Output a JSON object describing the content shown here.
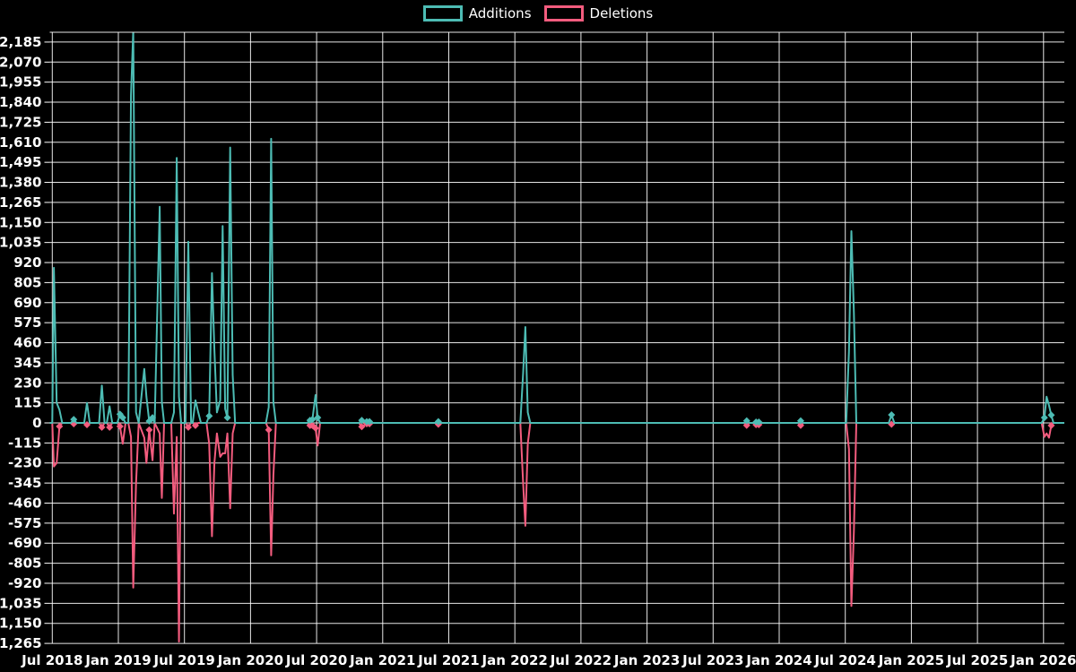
{
  "page": {
    "background": "#000000"
  },
  "legend": {
    "items": [
      {
        "label": "Additions",
        "color": "#4dbcb4"
      },
      {
        "label": "Deletions",
        "color": "#f35c7e"
      }
    ]
  },
  "chart_data": {
    "type": "line",
    "title": "",
    "xlabel": "",
    "ylabel": "",
    "x_unit": "months_since_jul_2018_weekly_points",
    "grid": true,
    "legend_position": "top-center",
    "background_color": "#000000",
    "gridline_color": "#ffffff",
    "x_ticks": [
      {
        "label": "Jul 2018",
        "month": 0
      },
      {
        "label": "Jan 2019",
        "month": 6
      },
      {
        "label": "Jul 2019",
        "month": 12
      },
      {
        "label": "Jan 2020",
        "month": 18
      },
      {
        "label": "Jul 2020",
        "month": 24
      },
      {
        "label": "Jan 2021",
        "month": 30
      },
      {
        "label": "Jul 2021",
        "month": 36
      },
      {
        "label": "Jan 2022",
        "month": 42
      },
      {
        "label": "Jul 2022",
        "month": 48
      },
      {
        "label": "Jan 2023",
        "month": 54
      },
      {
        "label": "Jul 2023",
        "month": 60
      },
      {
        "label": "Jan 2024",
        "month": 66
      },
      {
        "label": "Jul 2024",
        "month": 72
      },
      {
        "label": "Jan 2025",
        "month": 78
      },
      {
        "label": "Jul 2025",
        "month": 84
      },
      {
        "label": "Jan 2026",
        "month": 90
      }
    ],
    "y_ticks": [
      2185,
      2070,
      1955,
      1840,
      1725,
      1610,
      1495,
      1380,
      1265,
      1150,
      1035,
      920,
      805,
      690,
      575,
      460,
      345,
      230,
      115,
      0,
      -115,
      -230,
      -345,
      -460,
      -575,
      -690,
      -805,
      -920,
      -1035,
      -1150,
      -1265
    ],
    "y_step": 115,
    "y_shown_range": [
      -1265,
      2185
    ],
    "x": [
      0.0,
      0.15,
      0.4,
      0.65,
      0.9,
      1.95,
      3.15,
      4.5,
      5.2,
      6.15,
      6.4,
      7.15,
      7.35,
      7.6,
      7.85,
      8.35,
      8.55,
      8.8,
      9.1,
      9.3,
      9.75,
      9.95,
      10.15,
      11.05,
      11.3,
      11.5,
      11.7,
      12.35,
      13.0,
      13.25,
      14.25,
      14.5,
      14.72,
      14.95,
      15.25,
      15.47,
      15.7,
      15.9,
      16.15,
      16.38,
      16.6,
      19.65,
      19.87,
      20.08,
      20.3,
      23.4,
      23.62,
      23.9,
      24.1,
      24.32,
      28.1,
      28.55,
      28.8,
      35.05,
      42.75,
      42.95,
      43.17,
      43.4,
      63.05,
      63.9,
      64.15,
      67.95,
      72.33,
      72.55,
      72.78,
      73.0,
      76.2,
      90.08,
      90.28,
      90.5,
      90.7,
      90.9,
      92.2
    ],
    "series": [
      {
        "name": "Additions",
        "color": "#4dbcb4",
        "values": [
          0,
          890,
          115,
          75,
          0,
          20,
          115,
          215,
          95,
          50,
          30,
          1880,
          2250,
          60,
          0,
          310,
          150,
          10,
          30,
          0,
          1240,
          120,
          0,
          60,
          1520,
          150,
          0,
          1040,
          130,
          60,
          40,
          860,
          420,
          60,
          130,
          1130,
          80,
          30,
          1580,
          275,
          0,
          90,
          1630,
          120,
          0,
          15,
          20,
          160,
          30,
          0,
          15,
          8,
          8,
          8,
          285,
          550,
          60,
          0,
          12,
          5,
          5,
          12,
          410,
          1100,
          630,
          0,
          46,
          30,
          150,
          100,
          45,
          0,
          0
        ]
      },
      {
        "name": "Deletions",
        "color": "#f35c7e",
        "values": [
          0,
          -250,
          -230,
          -20,
          0,
          -5,
          -10,
          -25,
          -25,
          -20,
          -120,
          -80,
          -945,
          -350,
          0,
          -85,
          -230,
          -40,
          -215,
          0,
          -60,
          -430,
          0,
          -520,
          -80,
          -1255,
          0,
          -25,
          -15,
          0,
          -120,
          -650,
          -230,
          -60,
          -195,
          -175,
          -175,
          -60,
          -490,
          -60,
          0,
          -40,
          -760,
          -300,
          0,
          -15,
          -15,
          -30,
          -130,
          0,
          -22,
          -5,
          -5,
          -8,
          -345,
          -590,
          -120,
          0,
          -14,
          -10,
          -10,
          -14,
          -150,
          -1050,
          -620,
          0,
          -8,
          -80,
          -60,
          -85,
          -15,
          0,
          0
        ]
      }
    ]
  }
}
